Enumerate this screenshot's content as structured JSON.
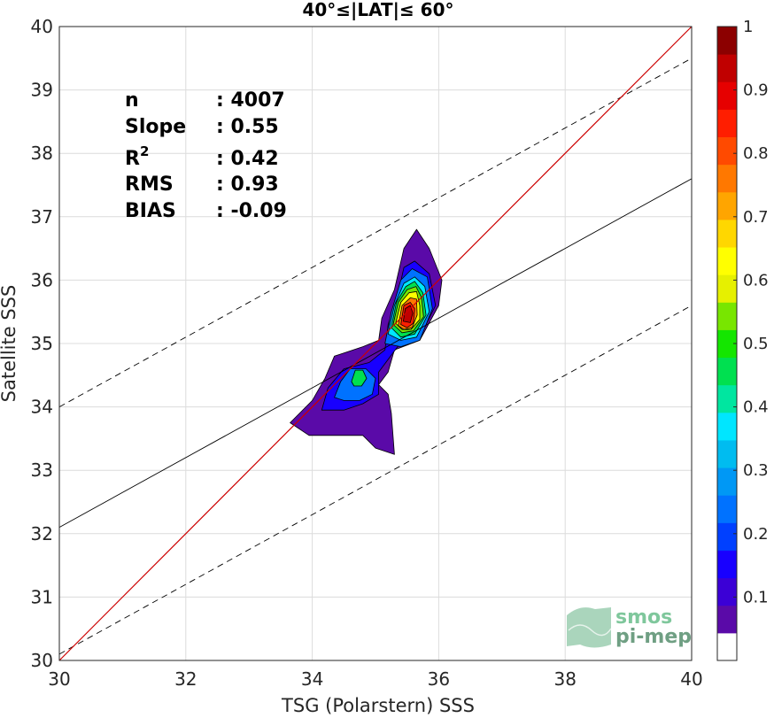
{
  "chart_data": {
    "type": "scatter",
    "title": "40°≤|LAT|≤ 60°",
    "xlabel": "TSG (Polarstern) SSS",
    "ylabel": "Satellite SSS",
    "xlim": [
      30,
      40
    ],
    "ylim": [
      30,
      40
    ],
    "xticks": [
      "30",
      "32",
      "34",
      "36",
      "38",
      "40"
    ],
    "yticks": [
      "30",
      "31",
      "32",
      "33",
      "34",
      "35",
      "36",
      "37",
      "38",
      "39",
      "40"
    ],
    "grid": true,
    "stats": [
      {
        "label": "n",
        "value": ": 4007"
      },
      {
        "label": "Slope",
        "value": ": 0.55"
      },
      {
        "label": "R",
        "sup": "2",
        "value": ": 0.42"
      },
      {
        "label": "RMS",
        "value": ": 0.93"
      },
      {
        "label": "BIAS",
        "value": ": -0.09"
      }
    ],
    "lines": {
      "identity": {
        "color": "#cc0000",
        "x": [
          30,
          40
        ],
        "y": [
          30,
          40
        ]
      },
      "regression": {
        "color": "#000000",
        "slope": 0.55,
        "intercept": 15.6
      },
      "bounds_dashed": [
        {
          "slope": 0.55,
          "intercept": 17.5
        },
        {
          "slope": 0.55,
          "intercept": 13.6
        }
      ]
    },
    "density_contours": [
      {
        "level": 0.05,
        "points": [
          [
            33.65,
            33.75
          ],
          [
            34.0,
            34.1
          ],
          [
            34.2,
            34.45
          ],
          [
            34.35,
            34.8
          ],
          [
            34.8,
            34.95
          ],
          [
            35.05,
            35.05
          ],
          [
            35.1,
            35.4
          ],
          [
            35.3,
            35.85
          ],
          [
            35.45,
            36.5
          ],
          [
            35.65,
            36.8
          ],
          [
            35.85,
            36.5
          ],
          [
            36.05,
            36.0
          ],
          [
            36.0,
            35.6
          ],
          [
            35.7,
            35.05
          ],
          [
            35.3,
            34.9
          ],
          [
            35.2,
            34.55
          ],
          [
            35.05,
            34.35
          ],
          [
            35.2,
            34.2
          ],
          [
            35.25,
            33.9
          ],
          [
            35.3,
            33.25
          ],
          [
            35.0,
            33.35
          ],
          [
            34.8,
            33.55
          ],
          [
            34.3,
            33.55
          ],
          [
            33.95,
            33.55
          ]
        ]
      },
      {
        "level": 0.15,
        "points": [
          [
            34.15,
            33.95
          ],
          [
            34.25,
            34.3
          ],
          [
            34.5,
            34.6
          ],
          [
            34.9,
            34.7
          ],
          [
            35.15,
            34.9
          ],
          [
            35.2,
            35.3
          ],
          [
            35.35,
            35.75
          ],
          [
            35.45,
            36.2
          ],
          [
            35.62,
            36.3
          ],
          [
            35.85,
            36.1
          ],
          [
            35.95,
            35.6
          ],
          [
            35.7,
            35.1
          ],
          [
            35.35,
            34.95
          ],
          [
            35.05,
            34.55
          ],
          [
            35.05,
            34.2
          ],
          [
            34.8,
            34.05
          ],
          [
            34.5,
            33.95
          ]
        ]
      },
      {
        "level": 0.25,
        "points": [
          [
            34.35,
            34.15
          ],
          [
            34.45,
            34.4
          ],
          [
            34.6,
            34.6
          ],
          [
            34.85,
            34.6
          ],
          [
            35.0,
            34.45
          ],
          [
            34.95,
            34.2
          ],
          [
            34.75,
            34.1
          ],
          [
            34.5,
            34.1
          ]
        ]
      },
      {
        "level": 0.25,
        "points": [
          [
            35.15,
            35.0
          ],
          [
            35.25,
            35.5
          ],
          [
            35.4,
            36.0
          ],
          [
            35.58,
            36.18
          ],
          [
            35.82,
            36.05
          ],
          [
            35.9,
            35.55
          ],
          [
            35.7,
            35.05
          ],
          [
            35.4,
            34.95
          ]
        ]
      },
      {
        "level": 0.35,
        "points": [
          [
            35.2,
            35.15
          ],
          [
            35.3,
            35.6
          ],
          [
            35.45,
            35.95
          ],
          [
            35.62,
            36.05
          ],
          [
            35.78,
            35.9
          ],
          [
            35.85,
            35.5
          ],
          [
            35.65,
            35.1
          ],
          [
            35.4,
            35.05
          ]
        ]
      },
      {
        "level": 0.45,
        "points": [
          [
            34.62,
            34.4
          ],
          [
            34.68,
            34.58
          ],
          [
            34.8,
            34.58
          ],
          [
            34.86,
            34.45
          ],
          [
            34.78,
            34.33
          ],
          [
            34.66,
            34.33
          ]
        ]
      },
      {
        "level": 0.45,
        "points": [
          [
            35.25,
            35.25
          ],
          [
            35.33,
            35.65
          ],
          [
            35.48,
            35.9
          ],
          [
            35.62,
            35.98
          ],
          [
            35.75,
            35.8
          ],
          [
            35.8,
            35.45
          ],
          [
            35.62,
            35.15
          ],
          [
            35.4,
            35.1
          ]
        ]
      },
      {
        "level": 0.55,
        "points": [
          [
            35.28,
            35.3
          ],
          [
            35.36,
            35.65
          ],
          [
            35.5,
            35.85
          ],
          [
            35.64,
            35.9
          ],
          [
            35.73,
            35.72
          ],
          [
            35.76,
            35.42
          ],
          [
            35.6,
            35.2
          ],
          [
            35.42,
            35.17
          ]
        ]
      },
      {
        "level": 0.65,
        "points": [
          [
            35.32,
            35.32
          ],
          [
            35.4,
            35.65
          ],
          [
            35.53,
            35.8
          ],
          [
            35.65,
            35.82
          ],
          [
            35.7,
            35.6
          ],
          [
            35.7,
            35.38
          ],
          [
            35.56,
            35.22
          ],
          [
            35.42,
            35.22
          ]
        ]
      },
      {
        "level": 0.75,
        "points": [
          [
            35.36,
            35.28
          ],
          [
            35.42,
            35.6
          ],
          [
            35.55,
            35.72
          ],
          [
            35.65,
            35.7
          ],
          [
            35.66,
            35.45
          ],
          [
            35.58,
            35.25
          ],
          [
            35.45,
            35.22
          ]
        ]
      },
      {
        "level": 0.85,
        "points": [
          [
            35.4,
            35.3
          ],
          [
            35.45,
            35.6
          ],
          [
            35.55,
            35.65
          ],
          [
            35.62,
            35.55
          ],
          [
            35.6,
            35.32
          ],
          [
            35.5,
            35.25
          ]
        ]
      },
      {
        "level": 0.92,
        "points": [
          [
            35.44,
            35.35
          ],
          [
            35.47,
            35.55
          ],
          [
            35.55,
            35.6
          ],
          [
            35.59,
            35.48
          ],
          [
            35.55,
            35.33
          ]
        ]
      }
    ],
    "colorbar": {
      "range": [
        0,
        1
      ],
      "ticks": [
        "0.1",
        "0.2",
        "0.3",
        "0.4",
        "0.5",
        "0.6",
        "0.7",
        "0.8",
        "0.9",
        "1"
      ],
      "colors": [
        "#ffffff",
        "#5a0aa8",
        "#3b00d6",
        "#1800ff",
        "#0040ff",
        "#0072ff",
        "#0098f5",
        "#00bcf0",
        "#00e6ff",
        "#00e6a0",
        "#00e050",
        "#14e600",
        "#78e600",
        "#e6f000",
        "#ffff00",
        "#ffd700",
        "#ffa500",
        "#ff7800",
        "#ff4a00",
        "#ff1e00",
        "#e60000",
        "#c00000",
        "#8c0000"
      ]
    }
  },
  "logo": {
    "line1": "smos",
    "line2": "pi-mep"
  }
}
